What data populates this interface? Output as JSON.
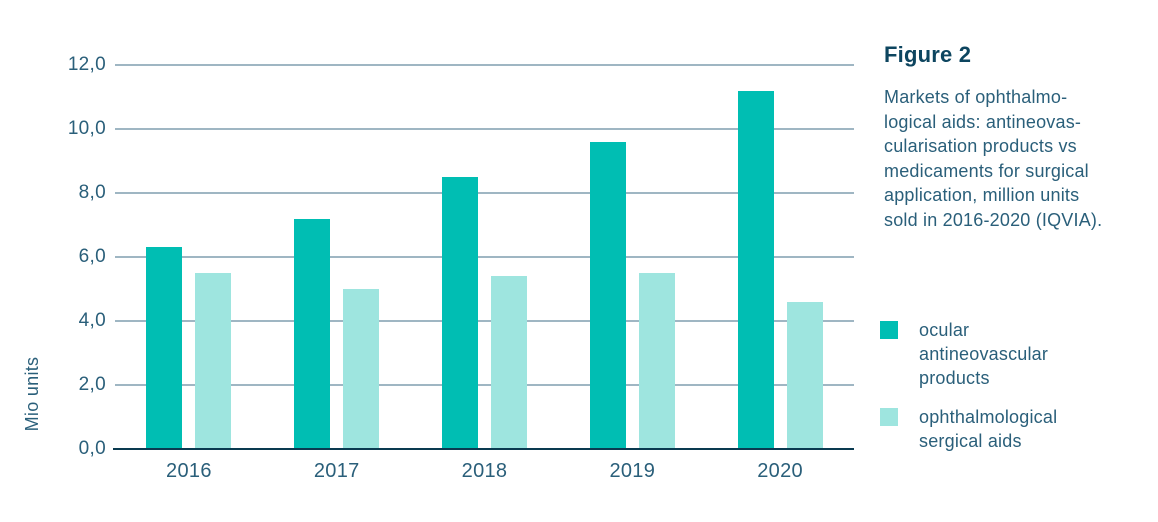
{
  "figure": {
    "title": "Figure 2",
    "caption": "Markets of ophthalmo-\nlogical aids: antineovas-\ncularisation products vs\nmedicaments for surgical\napplication, million units\nsold in 2016-2020 (IQVIA)."
  },
  "chart_data": {
    "type": "bar",
    "title": "Figure 2",
    "subtitle": "Markets of ophthalmological aids: antineovascularisation products vs medicaments for surgical application, million units sold in 2016-2020 (IQVIA).",
    "categories": [
      "2016",
      "2017",
      "2018",
      "2019",
      "2020"
    ],
    "series": [
      {
        "name": "ocular antineovascular products",
        "color": "#00beb3",
        "values": [
          6.3,
          7.2,
          8.5,
          9.6,
          11.2
        ]
      },
      {
        "name": "ophthalmological sergical aids",
        "color": "#9ee5df",
        "values": [
          5.5,
          5.0,
          5.4,
          5.5,
          4.6
        ]
      }
    ],
    "xlabel": "",
    "ylabel": "Mio units",
    "ylim": [
      0,
      12
    ],
    "ytick_labels": [
      "0,0",
      "2,0",
      "4,0",
      "6,0",
      "8,0",
      "10,0",
      "12,0"
    ],
    "grid": true,
    "legend_position": "right"
  },
  "legend": {
    "items": [
      {
        "label": "ocular\nantineovascular\nproducts",
        "color": "#00beb3"
      },
      {
        "label": "ophthalmological\nsergical aids",
        "color": "#9ee5df"
      }
    ]
  },
  "colors": {
    "series_dark": "#00beb3",
    "series_light": "#9ee5df",
    "gridline": "#9fb6c3",
    "axis_line": "#0a3a50",
    "text_primary": "#2a5f7a",
    "heading": "#0d455f"
  }
}
